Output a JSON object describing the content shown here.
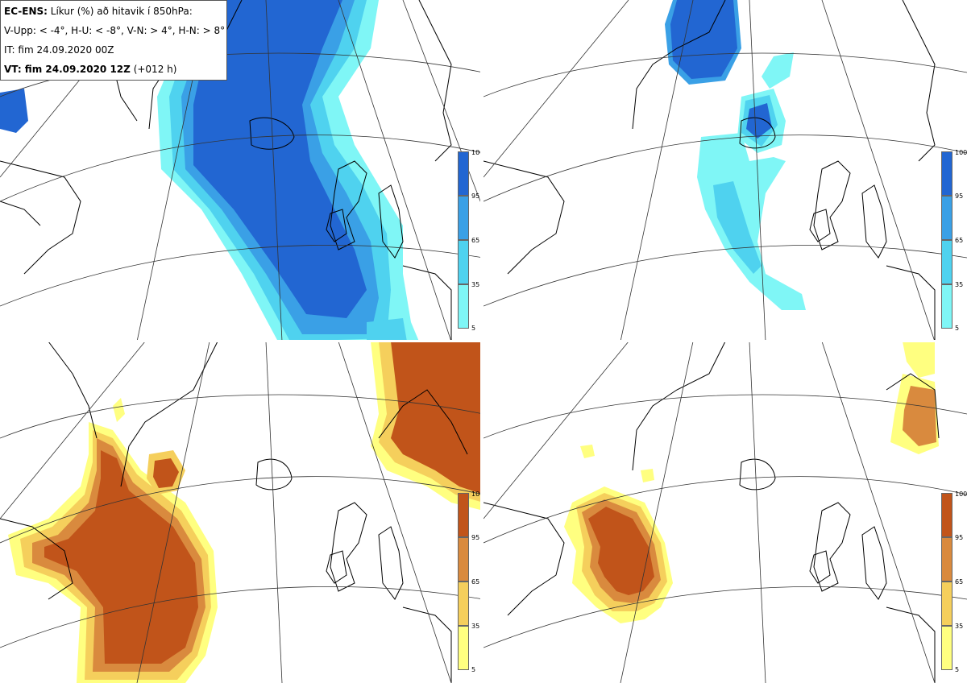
{
  "title_box": {
    "line1_bold": "EC-ENS:",
    "line1_rest": " Líkur (%) að hitavik í 850hPa:",
    "line2": "V-Upp: < -4°, H-U: < -8°, V-N: > 4°, H-N: > 8°",
    "line3": "IT: fim 24.09.2020 00Z",
    "line4_bold": "VT: fim 24.09.2020 12Z",
    "line4_rest": " (+012 h)"
  },
  "legend_ticks": [
    "100",
    "95",
    "65",
    "35",
    "5"
  ],
  "colors": {
    "cold": [
      "#7ff6f6",
      "#4fd2ef",
      "#3aa0e6",
      "#2266d2"
    ],
    "warm": [
      "#ffff80",
      "#f5cf5c",
      "#d98a3e",
      "#c1541a"
    ],
    "coast": "#000000",
    "grid": "#333333"
  },
  "panels": [
    {
      "name": "V-Upp",
      "palette": "cold"
    },
    {
      "name": "H-U",
      "palette": "cold"
    },
    {
      "name": "V-N",
      "palette": "warm"
    },
    {
      "name": "H-N",
      "palette": "warm"
    }
  ]
}
